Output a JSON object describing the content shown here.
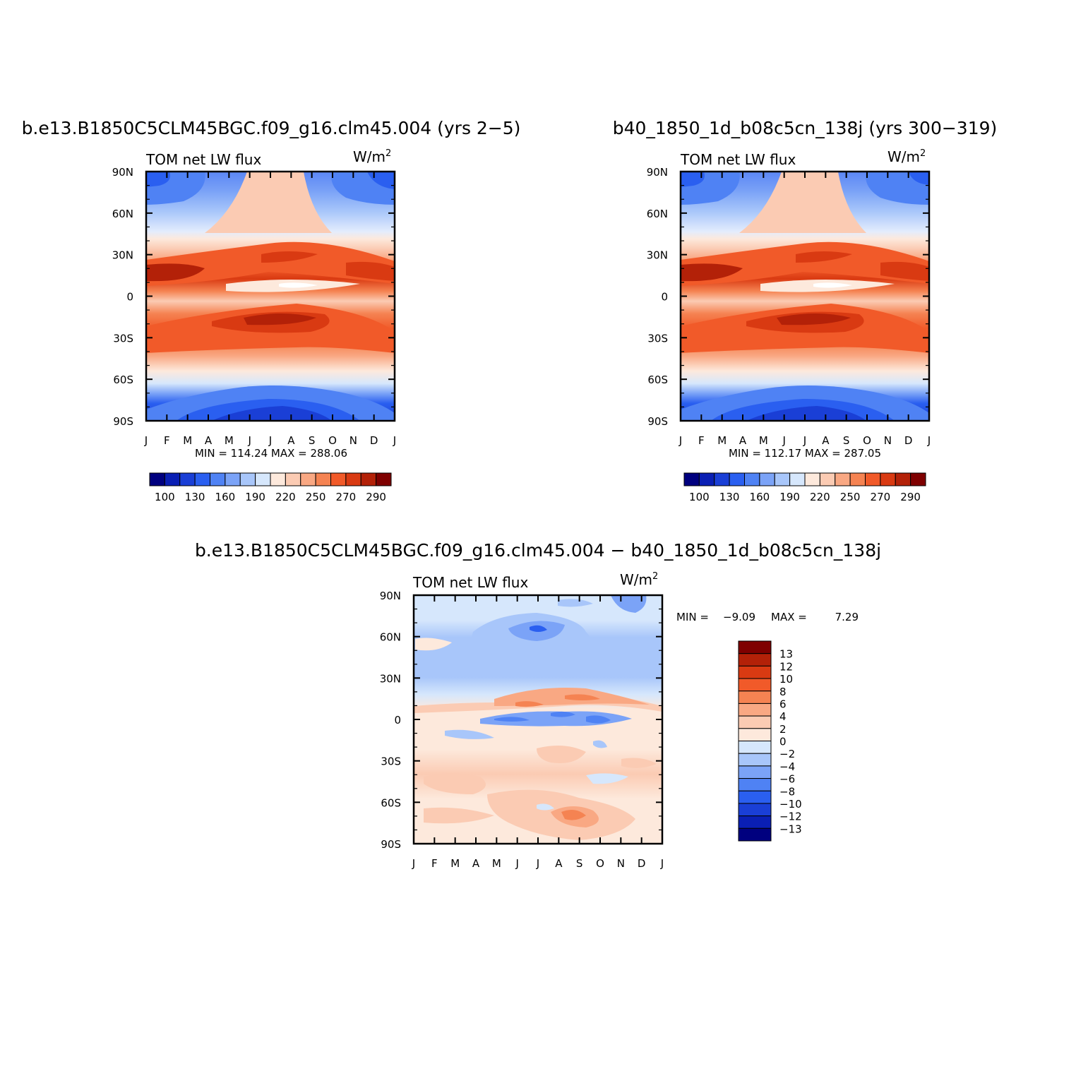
{
  "chart_data": [
    {
      "type": "heatmap",
      "title": "b.e13.B1850C5CLM45BGC.f09_g16.clm45.004 (yrs 2−5)",
      "left_label": "TOM net LW flux",
      "units": "W/m",
      "units_sup": "2",
      "x_ticks": [
        "J",
        "F",
        "M",
        "A",
        "M",
        "J",
        "J",
        "A",
        "S",
        "O",
        "N",
        "D",
        "J"
      ],
      "y_ticks": [
        "90N",
        "60N",
        "30N",
        "0",
        "30S",
        "60S",
        "90S"
      ],
      "stats": "MIN = 114.24 MAX = 288.06",
      "min": 114.24,
      "max": 288.06,
      "colorbar_labels": [
        "100",
        "130",
        "160",
        "190",
        "220",
        "250",
        "270",
        "290"
      ],
      "colorbar_colors": [
        "#00007f",
        "#0a1fb4",
        "#1a3fd6",
        "#2a5ff0",
        "#4f82f4",
        "#7ba3f7",
        "#a8c6fa",
        "#d6e7fc",
        "#fde9dc",
        "#fbcbb3",
        "#f9a883",
        "#f58352",
        "#f15a29",
        "#d93a12",
        "#b32108",
        "#7f0000"
      ]
    },
    {
      "type": "heatmap",
      "title": "b40_1850_1d_b08c5cn_138j (yrs 300−319)",
      "left_label": "TOM net LW flux",
      "units": "W/m",
      "units_sup": "2",
      "x_ticks": [
        "J",
        "F",
        "M",
        "A",
        "M",
        "J",
        "J",
        "A",
        "S",
        "O",
        "N",
        "D",
        "J"
      ],
      "y_ticks": [
        "90N",
        "60N",
        "30N",
        "0",
        "30S",
        "60S",
        "90S"
      ],
      "stats": "MIN = 112.17 MAX = 287.05",
      "min": 112.17,
      "max": 287.05,
      "colorbar_labels": [
        "100",
        "130",
        "160",
        "190",
        "220",
        "250",
        "270",
        "290"
      ],
      "colorbar_colors": [
        "#00007f",
        "#0a1fb4",
        "#1a3fd6",
        "#2a5ff0",
        "#4f82f4",
        "#7ba3f7",
        "#a8c6fa",
        "#d6e7fc",
        "#fde9dc",
        "#fbcbb3",
        "#f9a883",
        "#f58352",
        "#f15a29",
        "#d93a12",
        "#b32108",
        "#7f0000"
      ]
    },
    {
      "type": "heatmap",
      "title": "b.e13.B1850C5CLM45BGC.f09_g16.clm45.004 − b40_1850_1d_b08c5cn_138j",
      "left_label": "TOM net LW flux",
      "units": "W/m",
      "units_sup": "2",
      "x_ticks": [
        "J",
        "F",
        "M",
        "A",
        "M",
        "J",
        "J",
        "A",
        "S",
        "O",
        "N",
        "D",
        "J"
      ],
      "y_ticks": [
        "90N",
        "60N",
        "30N",
        "0",
        "30S",
        "60S",
        "90S"
      ],
      "stats_min_label": "MIN =",
      "stats_min": "−9.09",
      "stats_max_label": "MAX =",
      "stats_max": "7.29",
      "min": -9.09,
      "max": 7.29,
      "colorbar_labels": [
        "13",
        "12",
        "10",
        "8",
        "6",
        "4",
        "2",
        "0",
        "−2",
        "−4",
        "−6",
        "−8",
        "−10",
        "−12",
        "−13"
      ],
      "colorbar_colors": [
        "#7f0000",
        "#b32108",
        "#d93a12",
        "#f15a29",
        "#f58352",
        "#f9a883",
        "#fbcbb3",
        "#fde9dc",
        "#d6e7fc",
        "#a8c6fa",
        "#7ba3f7",
        "#4f82f4",
        "#2a5ff0",
        "#1a3fd6",
        "#0a1fb4",
        "#00007f"
      ]
    }
  ]
}
